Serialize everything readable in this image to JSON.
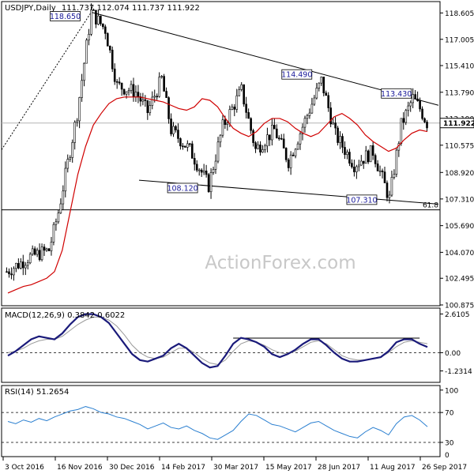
{
  "chart_data": [
    {
      "type": "candlestick",
      "panel": "price",
      "title": "USDJPY,Daily",
      "ohlc_label": "111.737 112.074 111.737 111.922",
      "last_price": 111.922,
      "last_price_label": "111.922",
      "ylim": [
        100.875,
        119.2
      ],
      "y_ticks": [
        "118.605",
        "117.005",
        "115.410",
        "113.790",
        "112.190",
        "110.575",
        "108.920",
        "107.310",
        "105.690",
        "104.070",
        "102.495",
        "100.875"
      ],
      "x_ticks": [
        "3 Oct 2016",
        "16 Nov 2016",
        "30 Dec 2016",
        "14 Feb 2017",
        "30 Mar 2017",
        "15 May 2017",
        "28 Jun 2017",
        "11 Aug 2017",
        "26 Sep 2017"
      ],
      "watermark": "ActionForex.com",
      "annotations": [
        {
          "label": "118.650",
          "value": 118.65
        },
        {
          "label": "114.490",
          "value": 114.49
        },
        {
          "label": "113.430",
          "value": 113.43
        },
        {
          "label": "108.120",
          "value": 108.12
        },
        {
          "label": "107.310",
          "value": 107.31
        }
      ],
      "fib_level": {
        "label": "61.8",
        "value": 106.65
      },
      "ma_values": [
        101.6,
        101.8,
        102.0,
        102.1,
        102.3,
        102.5,
        102.9,
        104.2,
        106.5,
        108.8,
        110.5,
        111.8,
        112.5,
        113.1,
        113.4,
        113.5,
        113.5,
        113.5,
        113.4,
        113.3,
        113.2,
        113.0,
        112.8,
        112.7,
        112.9,
        113.4,
        113.3,
        112.9,
        112.2,
        111.6,
        111.3,
        111.1,
        111.4,
        111.9,
        112.2,
        112.2,
        112.0,
        111.6,
        111.3,
        111.1,
        111.3,
        111.8,
        112.3,
        112.5,
        112.2,
        111.8,
        111.2,
        110.8,
        110.5,
        110.2,
        110.4,
        110.9,
        111.3,
        111.5,
        111.4
      ]
    },
    {
      "type": "line",
      "panel": "macd",
      "label": "MACD(12,26,9) 0.3842 0.6022",
      "ylim": [
        -1.95,
        2.9
      ],
      "y_ticks": [
        "2.6105",
        "0.00",
        "-1.2314"
      ],
      "series_values": [
        -0.2,
        0.1,
        0.5,
        0.9,
        1.1,
        1.0,
        0.9,
        1.3,
        1.9,
        2.4,
        2.6,
        2.6,
        2.4,
        2.0,
        1.3,
        0.6,
        -0.1,
        -0.5,
        -0.6,
        -0.4,
        -0.2,
        0.3,
        0.6,
        0.3,
        -0.2,
        -0.7,
        -1.0,
        -0.9,
        -0.2,
        0.6,
        1.0,
        0.9,
        0.7,
        0.4,
        -0.1,
        -0.3,
        -0.1,
        0.2,
        0.6,
        0.9,
        0.9,
        0.5,
        0.0,
        -0.4,
        -0.6,
        -0.6,
        -0.5,
        -0.4,
        -0.3,
        0.1,
        0.7,
        0.9,
        0.9,
        0.6,
        0.38
      ],
      "signal_values": [
        0.0,
        0.1,
        0.3,
        0.6,
        0.8,
        0.9,
        0.9,
        1.1,
        1.5,
        1.9,
        2.2,
        2.4,
        2.4,
        2.2,
        1.8,
        1.2,
        0.5,
        0.0,
        -0.3,
        -0.4,
        -0.3,
        0.0,
        0.3,
        0.3,
        0.0,
        -0.4,
        -0.7,
        -0.8,
        -0.5,
        0.1,
        0.6,
        0.8,
        0.7,
        0.5,
        0.2,
        0.0,
        -0.1,
        0.1,
        0.4,
        0.7,
        0.8,
        0.6,
        0.2,
        -0.2,
        -0.4,
        -0.5,
        -0.5,
        -0.4,
        -0.3,
        0.0,
        0.4,
        0.7,
        0.8,
        0.7,
        0.6
      ],
      "resistance_level": 0.98
    },
    {
      "type": "line",
      "panel": "rsi",
      "label": "RSI(14) 51.2654",
      "ylim": [
        12,
        104
      ],
      "y_ticks": [
        "100",
        "70",
        "30",
        "0"
      ],
      "levels": [
        70,
        30
      ],
      "series_values": [
        58,
        55,
        60,
        57,
        62,
        59,
        64,
        68,
        72,
        74,
        78,
        75,
        70,
        68,
        64,
        62,
        58,
        54,
        48,
        52,
        56,
        50,
        48,
        52,
        46,
        42,
        36,
        34,
        40,
        46,
        58,
        68,
        66,
        60,
        54,
        52,
        48,
        44,
        50,
        56,
        58,
        52,
        46,
        42,
        38,
        36,
        44,
        50,
        46,
        40,
        55,
        64,
        66,
        60,
        51
      ]
    }
  ]
}
